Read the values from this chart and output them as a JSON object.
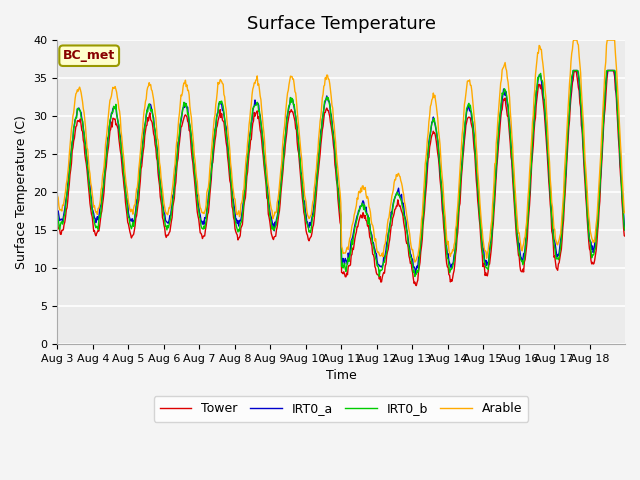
{
  "title": "Surface Temperature",
  "ylabel": "Surface Temperature (C)",
  "xlabel": "Time",
  "annotation": "BC_met",
  "ylim": [
    0,
    40
  ],
  "yticks": [
    0,
    5,
    10,
    15,
    20,
    25,
    30,
    35,
    40
  ],
  "xtick_labels": [
    "Aug 3",
    "Aug 4",
    "Aug 5",
    "Aug 6",
    "Aug 7",
    "Aug 8",
    "Aug 9",
    "Aug 10",
    "Aug 11",
    "Aug 12",
    "Aug 13",
    "Aug 14",
    "Aug 15",
    "Aug 16",
    "Aug 17",
    "Aug 18"
  ],
  "legend_labels": [
    "Tower",
    "IRT0_a",
    "IRT0_b",
    "Arable"
  ],
  "line_colors": [
    "#dd0000",
    "#0000cc",
    "#00cc00",
    "#ffaa00"
  ],
  "plot_bg_color": "#ebebeb",
  "grid_color": "#ffffff",
  "title_fontsize": 13,
  "label_fontsize": 9,
  "tick_fontsize": 8,
  "legend_fontsize": 9,
  "n_days": 16
}
